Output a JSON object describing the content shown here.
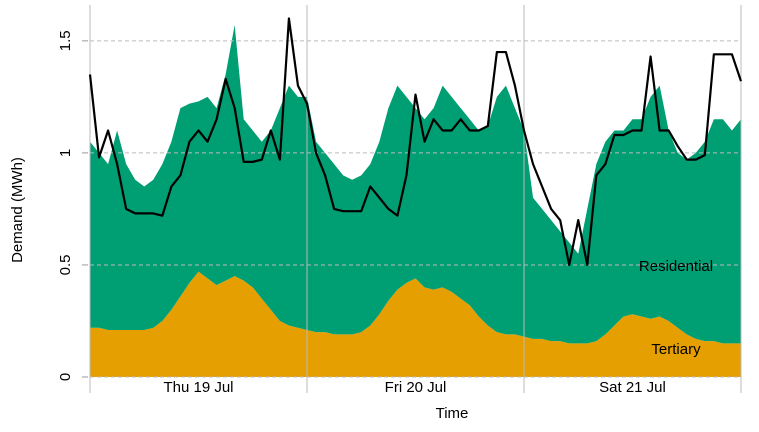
{
  "chart_data": {
    "type": "stacked_area_line",
    "x_label": "Time",
    "y_label": "Demand (MWh)",
    "categories": [
      null,
      null,
      null,
      null,
      null,
      null,
      null,
      null,
      null,
      null,
      null,
      null,
      "Thu 19 Jul",
      null,
      null,
      null,
      null,
      null,
      null,
      null,
      null,
      null,
      null,
      null,
      null,
      null,
      null,
      null,
      null,
      null,
      null,
      null,
      null,
      null,
      null,
      null,
      "Fri 20 Jul",
      null,
      null,
      null,
      null,
      null,
      null,
      null,
      null,
      null,
      null,
      null,
      null,
      null,
      null,
      null,
      null,
      null,
      null,
      null,
      null,
      null,
      null,
      null,
      "Sat 21 Jul",
      null,
      null,
      null,
      null,
      null,
      null,
      null,
      null,
      null,
      null,
      null,
      null
    ],
    "series": [
      {
        "name": "Tertiary",
        "kind": "area",
        "color": "#e69f00",
        "values": [
          0.22,
          0.22,
          0.21,
          0.21,
          0.21,
          0.21,
          0.21,
          0.22,
          0.25,
          0.3,
          0.36,
          0.42,
          0.47,
          0.44,
          0.41,
          0.43,
          0.45,
          0.43,
          0.4,
          0.35,
          0.3,
          0.25,
          0.23,
          0.22,
          0.21,
          0.2,
          0.2,
          0.19,
          0.19,
          0.19,
          0.2,
          0.23,
          0.28,
          0.34,
          0.39,
          0.42,
          0.44,
          0.4,
          0.39,
          0.4,
          0.38,
          0.35,
          0.32,
          0.27,
          0.23,
          0.2,
          0.19,
          0.19,
          0.18,
          0.17,
          0.17,
          0.16,
          0.16,
          0.15,
          0.15,
          0.15,
          0.16,
          0.19,
          0.23,
          0.27,
          0.28,
          0.27,
          0.26,
          0.27,
          0.25,
          0.22,
          0.19,
          0.17,
          0.16,
          0.16,
          0.15,
          0.15,
          0.15
        ]
      },
      {
        "name": "Residential",
        "kind": "area",
        "color": "#009e73",
        "values": [
          0.83,
          0.78,
          0.74,
          0.89,
          0.74,
          0.67,
          0.64,
          0.66,
          0.7,
          0.75,
          0.84,
          0.8,
          0.76,
          0.81,
          0.79,
          0.92,
          1.12,
          0.72,
          0.7,
          0.7,
          0.8,
          0.95,
          1.07,
          1.03,
          1.04,
          0.85,
          0.8,
          0.76,
          0.71,
          0.69,
          0.7,
          0.72,
          0.77,
          0.86,
          0.91,
          0.83,
          0.76,
          0.75,
          0.81,
          0.9,
          0.87,
          0.85,
          0.83,
          0.83,
          0.89,
          1.05,
          1.11,
          1.01,
          0.92,
          0.63,
          0.58,
          0.54,
          0.49,
          0.45,
          0.4,
          0.6,
          0.79,
          0.86,
          0.87,
          0.83,
          0.87,
          0.88,
          0.99,
          1.03,
          0.85,
          0.78,
          0.78,
          0.83,
          0.89,
          0.99,
          1.0,
          0.95,
          1.0
        ]
      },
      {
        "kind": "line",
        "color": "#000000",
        "values": [
          1.35,
          0.98,
          1.1,
          0.95,
          0.75,
          0.73,
          0.73,
          0.73,
          0.72,
          0.85,
          0.9,
          1.05,
          1.1,
          1.05,
          1.15,
          1.33,
          1.2,
          0.96,
          0.96,
          0.97,
          1.1,
          0.97,
          1.6,
          1.3,
          1.22,
          1.0,
          0.9,
          0.75,
          0.74,
          0.74,
          0.74,
          0.85,
          0.8,
          0.75,
          0.72,
          0.9,
          1.26,
          1.05,
          1.15,
          1.1,
          1.1,
          1.15,
          1.1,
          1.1,
          1.12,
          1.45,
          1.45,
          1.3,
          1.1,
          0.95,
          0.85,
          0.75,
          0.7,
          0.5,
          0.7,
          0.5,
          0.9,
          0.95,
          1.08,
          1.08,
          1.1,
          1.1,
          1.43,
          1.1,
          1.1,
          1.03,
          0.97,
          0.97,
          0.99,
          1.44,
          1.44,
          1.44,
          1.32
        ]
      }
    ],
    "ylim": [
      0,
      1.66
    ],
    "yticks": [
      0,
      0.5,
      1,
      1.5
    ],
    "grid": true
  }
}
